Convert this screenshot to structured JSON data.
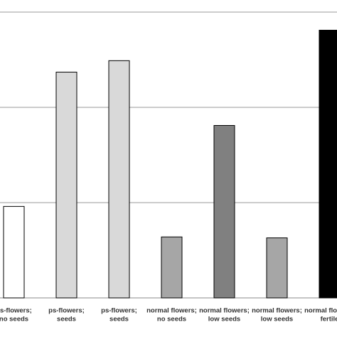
{
  "chart_data": {
    "type": "bar",
    "categories": [
      [
        "ps-flowers;",
        "no seeds"
      ],
      [
        "ps-flowers;",
        "seeds"
      ],
      [
        "ps-flowers;",
        "seeds"
      ],
      [
        "normal flowers;",
        "no seeds"
      ],
      [
        "normal flowers;",
        "low seeds"
      ],
      [
        "normal flowers;",
        "low seeds"
      ],
      [
        "normal flowers;",
        "fertile"
      ]
    ],
    "values": [
      0.96,
      2.37,
      2.49,
      0.64,
      1.81,
      0.63,
      2.81
    ],
    "colors": [
      "#ffffff",
      "#d9d9d9",
      "#d9d9d9",
      "#a6a6a6",
      "#808080",
      "#a6a6a6",
      "#000000"
    ],
    "ylim": [
      0,
      3
    ],
    "yticks": [
      0,
      1,
      2,
      3
    ],
    "grid": true
  }
}
